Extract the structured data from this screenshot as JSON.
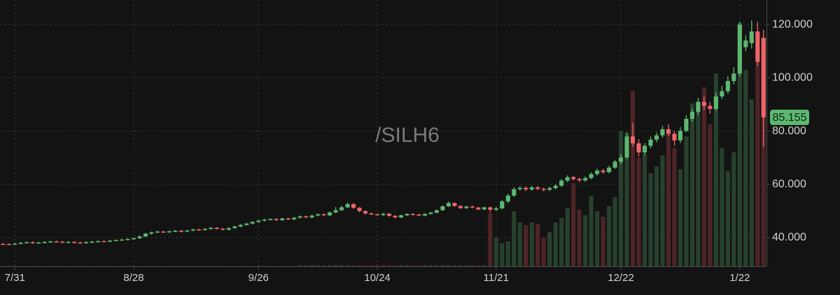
{
  "chart_data": {
    "type": "candlestick",
    "title": "/SILH6",
    "categories": [
      null,
      null,
      "7/31",
      null,
      null,
      null,
      null,
      null,
      null,
      null,
      null,
      null,
      null,
      null,
      null,
      null,
      null,
      null,
      null,
      null,
      null,
      null,
      "8/28",
      null,
      null,
      null,
      null,
      null,
      null,
      null,
      null,
      null,
      null,
      null,
      null,
      null,
      null,
      null,
      null,
      null,
      null,
      null,
      null,
      "9/26",
      null,
      null,
      null,
      null,
      null,
      null,
      null,
      null,
      null,
      null,
      null,
      null,
      null,
      null,
      null,
      null,
      null,
      null,
      null,
      "10/24",
      null,
      null,
      null,
      null,
      null,
      null,
      null,
      null,
      null,
      null,
      null,
      null,
      null,
      null,
      null,
      null,
      null,
      null,
      null,
      "11/21",
      null,
      null,
      null,
      null,
      null,
      null,
      null,
      null,
      null,
      null,
      null,
      null,
      null,
      null,
      null,
      null,
      null,
      null,
      null,
      null,
      "12/22",
      null,
      null,
      null,
      null,
      null,
      null,
      null,
      null,
      null,
      null,
      null,
      null,
      null,
      null,
      null,
      null,
      null,
      null,
      null,
      "1/22",
      null,
      null,
      null,
      null
    ],
    "open": [
      37.7,
      37.6,
      37.5,
      37.8,
      38.1,
      38.3,
      38.0,
      38.2,
      38.4,
      38.6,
      38.5,
      38.3,
      38.4,
      38.2,
      38.0,
      38.3,
      38.5,
      38.7,
      38.6,
      38.9,
      39.1,
      39.3,
      39.5,
      39.8,
      40.5,
      41.5,
      42.0,
      42.3,
      42.1,
      42.4,
      42.6,
      42.3,
      42.7,
      43.1,
      42.9,
      43.3,
      43.7,
      43.4,
      43.0,
      43.6,
      44.2,
      44.8,
      45.3,
      45.9,
      46.4,
      46.8,
      47.0,
      46.6,
      47.2,
      46.9,
      47.5,
      48.0,
      47.6,
      48.3,
      48.8,
      48.4,
      49.5,
      50.3,
      51.4,
      52.6,
      51.2,
      50.0,
      49.1,
      48.8,
      48.5,
      49.0,
      48.2,
      47.6,
      48.4,
      48.9,
      48.7,
      48.3,
      48.9,
      49.4,
      50.3,
      51.8,
      53.0,
      51.9,
      51.1,
      51.7,
      51.3,
      50.6,
      51.4,
      50.5,
      51.0,
      53.6,
      55.8,
      58.2,
      58.7,
      58.1,
      58.9,
      58.3,
      58.0,
      58.6,
      59.5,
      61.4,
      62.7,
      62.0,
      61.5,
      62.4,
      63.9,
      65.2,
      64.6,
      66.3,
      68.5,
      70.1,
      78.0,
      75.4,
      72.0,
      74.5,
      76.8,
      78.4,
      80.7,
      79.0,
      76.5,
      80.1,
      84.6,
      87.2,
      91.0,
      89.5,
      88.3,
      93.0,
      95.0,
      98.8,
      101.6,
      111.5,
      113.0,
      117.4,
      115.0
    ],
    "high": [
      38.0,
      37.9,
      38.1,
      38.4,
      38.6,
      38.6,
      38.5,
      38.7,
      38.9,
      38.9,
      38.8,
      38.7,
      38.7,
      38.5,
      38.6,
      38.8,
      39.0,
      39.0,
      39.2,
      39.4,
      39.6,
      39.8,
      40.1,
      40.8,
      41.8,
      42.3,
      42.6,
      42.6,
      42.7,
      42.9,
      42.9,
      43.0,
      43.4,
      43.4,
      43.6,
      44.0,
      44.0,
      43.7,
      43.9,
      44.5,
      45.1,
      45.6,
      46.2,
      46.7,
      47.1,
      47.3,
      47.3,
      47.5,
      47.5,
      47.8,
      48.3,
      48.3,
      48.6,
      49.1,
      49.1,
      49.8,
      51.5,
      52.0,
      53.2,
      53.0,
      51.5,
      50.3,
      49.4,
      49.1,
      49.3,
      49.3,
      48.5,
      48.7,
      49.2,
      49.2,
      49.0,
      49.2,
      49.7,
      50.6,
      52.1,
      53.6,
      53.3,
      52.2,
      52.0,
      52.0,
      51.6,
      51.7,
      51.7,
      51.5,
      54.2,
      56.5,
      59.0,
      59.4,
      59.3,
      59.5,
      59.4,
      58.8,
      59.2,
      60.1,
      62.1,
      63.4,
      63.3,
      62.6,
      63.0,
      64.5,
      65.9,
      65.9,
      67.0,
      69.2,
      71.5,
      79.5,
      83.0,
      77.0,
      75.5,
      78.0,
      79.5,
      82.0,
      82.5,
      80.0,
      81.5,
      86.0,
      88.5,
      92.5,
      93.0,
      91.0,
      94.5,
      97.0,
      100.5,
      104.0,
      121.0,
      116.0,
      121.5,
      121.0,
      118.0
    ],
    "low": [
      37.3,
      37.2,
      37.2,
      37.5,
      37.8,
      37.7,
      37.7,
      37.9,
      38.1,
      38.2,
      38.0,
      38.0,
      37.9,
      37.7,
      37.7,
      38.0,
      38.2,
      38.3,
      38.3,
      38.6,
      38.8,
      39.0,
      39.2,
      39.5,
      40.2,
      41.2,
      41.7,
      41.8,
      41.8,
      42.1,
      42.0,
      42.0,
      42.4,
      42.6,
      42.6,
      43.0,
      43.1,
      42.7,
      42.7,
      43.3,
      43.9,
      44.5,
      45.0,
      45.6,
      46.1,
      46.5,
      46.3,
      46.3,
      46.6,
      46.6,
      47.2,
      47.3,
      47.3,
      48.0,
      48.1,
      48.1,
      49.2,
      50.0,
      51.1,
      50.9,
      49.5,
      48.6,
      48.5,
      48.2,
      48.2,
      47.9,
      47.3,
      47.3,
      48.1,
      48.4,
      48.0,
      48.0,
      48.6,
      49.1,
      50.0,
      51.5,
      51.6,
      50.8,
      50.8,
      51.0,
      50.3,
      50.3,
      49.5,
      50.0,
      50.6,
      53.0,
      55.3,
      57.6,
      57.5,
      57.6,
      57.8,
      57.4,
      57.5,
      58.1,
      59.0,
      60.9,
      61.4,
      60.9,
      60.9,
      61.9,
      63.3,
      64.0,
      64.1,
      65.8,
      67.5,
      69.5,
      74.0,
      70.5,
      71.0,
      73.5,
      75.8,
      77.5,
      78.0,
      74.5,
      75.5,
      79.5,
      83.5,
      86.0,
      88.0,
      86.5,
      87.5,
      92.0,
      94.0,
      97.5,
      100.5,
      110.0,
      111.0,
      104.5,
      74.0
    ],
    "close": [
      37.6,
      37.5,
      37.8,
      38.1,
      38.3,
      38.0,
      38.2,
      38.4,
      38.6,
      38.5,
      38.3,
      38.4,
      38.2,
      38.0,
      38.3,
      38.5,
      38.7,
      38.6,
      38.9,
      39.1,
      39.3,
      39.5,
      39.8,
      40.5,
      41.5,
      42.0,
      42.3,
      42.1,
      42.4,
      42.6,
      42.3,
      42.7,
      43.1,
      42.9,
      43.3,
      43.7,
      43.4,
      43.0,
      43.6,
      44.2,
      44.8,
      45.3,
      45.9,
      46.4,
      46.8,
      47.0,
      46.6,
      47.2,
      46.9,
      47.5,
      48.0,
      47.6,
      48.3,
      48.8,
      48.4,
      49.5,
      50.3,
      51.4,
      52.6,
      51.2,
      50.0,
      49.1,
      48.8,
      48.5,
      49.0,
      48.2,
      47.6,
      48.4,
      48.9,
      48.7,
      48.3,
      48.9,
      49.4,
      50.3,
      51.8,
      53.0,
      51.9,
      51.1,
      51.7,
      51.3,
      50.6,
      51.4,
      50.5,
      51.0,
      53.6,
      55.8,
      58.2,
      58.7,
      58.1,
      58.9,
      58.3,
      58.0,
      58.6,
      59.5,
      61.4,
      62.7,
      62.0,
      61.5,
      62.4,
      63.9,
      65.2,
      64.6,
      66.3,
      68.5,
      70.1,
      78.0,
      75.4,
      72.0,
      74.5,
      76.8,
      78.4,
      80.7,
      79.0,
      76.5,
      80.1,
      84.6,
      87.2,
      91.0,
      89.5,
      88.3,
      93.0,
      95.0,
      98.8,
      101.6,
      120.0,
      114.0,
      117.4,
      106.0,
      85.155
    ],
    "volume": [
      0.1,
      0.1,
      0.1,
      0.1,
      0.1,
      0.1,
      0.1,
      0.1,
      0.1,
      0.1,
      0.1,
      0.1,
      0.1,
      0.1,
      0.1,
      0.1,
      0.1,
      0.1,
      0.1,
      0.1,
      0.1,
      0.1,
      0.1,
      0.1,
      0.1,
      0.1,
      0.1,
      0.1,
      0.1,
      0.1,
      0.1,
      0.1,
      0.1,
      0.1,
      0.1,
      0.1,
      0.1,
      0.1,
      0.1,
      0.1,
      0.1,
      0.1,
      0.1,
      0.1,
      0.1,
      0.1,
      0.1,
      0.1,
      0.1,
      0.1,
      0.4,
      0.4,
      0.4,
      0.4,
      0.4,
      0.4,
      0.4,
      0.4,
      0.4,
      0.4,
      0.4,
      0.4,
      0.4,
      0.4,
      0.4,
      0.4,
      0.4,
      0.4,
      0.4,
      0.4,
      0.4,
      0.4,
      0.4,
      0.4,
      0.4,
      0.4,
      0.4,
      0.4,
      0.4,
      0.4,
      0.4,
      0.4,
      20,
      10.8,
      8.7,
      9.4,
      20.7,
      16.5,
      15.5,
      16.5,
      16.0,
      10.8,
      12.9,
      16.5,
      18.1,
      21.8,
      31.2,
      21.3,
      19.2,
      26.5,
      20.7,
      18.6,
      22.6,
      26.0,
      50.7,
      50.1,
      65.9,
      40.9,
      42.3,
      34.9,
      37.5,
      41.7,
      50.1,
      44.4,
      36.5,
      48.8,
      61.2,
      61.2,
      67.2,
      53.3,
      72.4,
      44.4,
      35.7,
      42.8,
      91.6,
      73.8,
      62.7,
      76.9,
      84.3
    ],
    "volume_lim": [
      0,
      100
    ],
    "up_color": "#5cb870",
    "down_color": "#f0646a",
    "volume_up_color": "#27412c",
    "volume_down_color": "#4e2427",
    "ylim": [
      29.25,
      129.2
    ],
    "yticks": [
      {
        "value": 40,
        "label": "40.000"
      },
      {
        "value": 60,
        "label": "60.000"
      },
      {
        "value": 80,
        "label": "80.000"
      },
      {
        "value": 100,
        "label": "100.000"
      },
      {
        "value": 120,
        "label": "120.000"
      }
    ],
    "last_price": 85.155,
    "grid": true
  }
}
